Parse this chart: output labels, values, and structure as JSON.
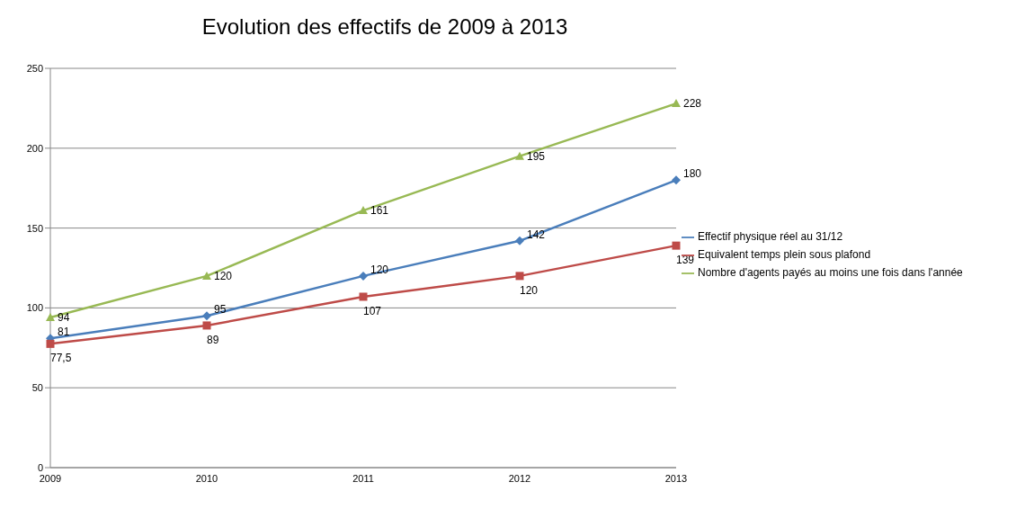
{
  "chart_data": {
    "type": "line",
    "title": "Evolution des effectifs de 2009 à 2013",
    "categories": [
      "2009",
      "2010",
      "2011",
      "2012",
      "2013"
    ],
    "series": [
      {
        "name": "Effectif physique réel au 31/12",
        "color": "#4a7ebb",
        "marker": "diamond",
        "values": [
          81,
          95,
          120,
          142,
          180
        ],
        "value_labels": [
          "81",
          "95",
          "120",
          "142",
          "180"
        ]
      },
      {
        "name": "Equivalent temps plein sous plafond",
        "color": "#be4b48",
        "marker": "square",
        "values": [
          77.5,
          89,
          107,
          120,
          139
        ],
        "value_labels": [
          "77,5",
          "89",
          "107",
          "120",
          "139"
        ]
      },
      {
        "name": "Nombre d'agents payés au moins une fois dans l'année",
        "color": "#98b954",
        "marker": "triangle",
        "values": [
          94,
          120,
          161,
          195,
          228
        ],
        "value_labels": [
          "94",
          "120",
          "161",
          "195",
          "228"
        ]
      }
    ],
    "ylim": [
      0,
      250
    ],
    "yticks": [
      0,
      50,
      100,
      150,
      200,
      250
    ],
    "grid": "y",
    "legend": "right"
  }
}
